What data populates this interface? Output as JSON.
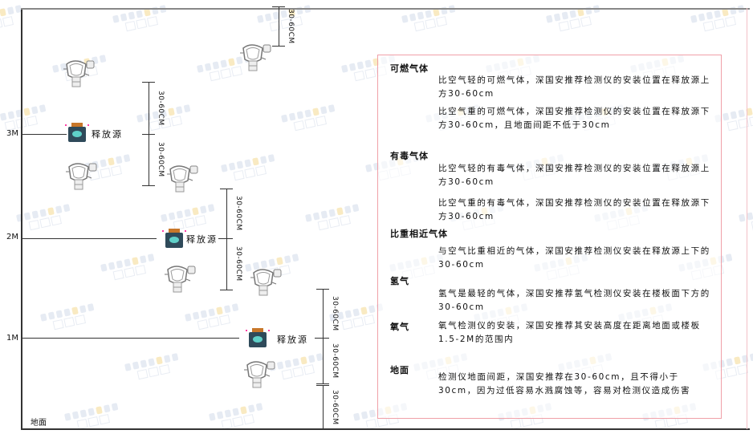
{
  "watermark": {
    "brand": "SINGOAN",
    "cn": "深国安"
  },
  "levels": {
    "l3": "3M",
    "l2": "2M",
    "l1": "1M",
    "ground": "地面"
  },
  "dimension_label": "30-60CM",
  "source_label": "释放源",
  "legend": {
    "flammable": {
      "title": "可燃气体",
      "lighter": "比空气轻的可燃气体，深国安推荐检测仪的安装位置在释放源上方30-60cm",
      "heavier": "比空气重的可燃气体，深国安推荐检测仪的安装位置在释放源下方30-60cm，且地面间距不低于30cm"
    },
    "toxic": {
      "title": "有毒气体",
      "lighter": "比空气轻的有毒气体，深国安推荐检测仪的安装位置在释放源上方30-60cm",
      "heavier": "比空气重的有毒气体，深国安推荐检测仪的安装位置在释放源下方30-60cm"
    },
    "similar": {
      "title": "比重相近气体",
      "text": "与空气比重相近的气体，深国安推荐检测仪安装在释放源上下的30-60cm"
    },
    "hydrogen": {
      "title": "氢气",
      "text": "氢气是最轻的气体，深国安推荐氢气检测仪安装在楼板面下方的30-60cm"
    },
    "oxygen": {
      "title": "氧气",
      "text": "氧气检测仪的安装，深国安推荐其安装高度在距离地面或楼板1.5-2M的范围内"
    },
    "ground": {
      "title": "地面",
      "text": "检测仪地面间距，深国安推荐在30-60cm，且不得小于30cm，因为过低容易水溅腐蚀等，容易对检测仪造成伤害"
    }
  },
  "colors": {
    "box_border": "#f0a0a8",
    "source_body": "#2f4a5a",
    "source_cap": "#c8772a",
    "source_face": "#5fd0c8"
  }
}
